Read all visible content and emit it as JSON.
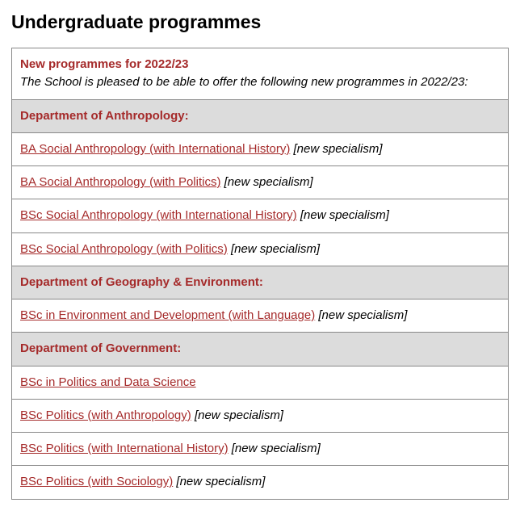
{
  "page_title": "Undergraduate programmes",
  "intro": {
    "heading": "New programmes for 2022/23",
    "text": "The School is pleased to be able to offer the following new programmes in 2022/23:"
  },
  "colors": {
    "accent": "#a52a2a",
    "dept_bg": "#dcdcdc",
    "border": "#888888",
    "text": "#000000",
    "background": "#ffffff"
  },
  "departments": [
    {
      "name": "Department of Anthropology:",
      "programmes": [
        {
          "title": "BA Social Anthropology (with International History)",
          "note": "[new specialism]"
        },
        {
          "title": "BA Social Anthropology (with Politics)",
          "note": "[new specialism]"
        },
        {
          "title": "BSc Social Anthropology (with International History)",
          "note": "[new specialism]"
        },
        {
          "title": "BSc Social Anthropology (with Politics)",
          "note": "[new specialism]"
        }
      ]
    },
    {
      "name": "Department of Geography & Environment:",
      "programmes": [
        {
          "title": "BSc in Environment and Development (with Language)",
          "note": "[new specialism]"
        }
      ]
    },
    {
      "name": "Department of Government:",
      "programmes": [
        {
          "title": "BSc in Politics and Data Science",
          "note": ""
        },
        {
          "title": "BSc Politics (with Anthropology)",
          "note": "[new specialism]"
        },
        {
          "title": "BSc Politics (with International History)",
          "note": "[new specialism]"
        },
        {
          "title": "BSc Politics (with Sociology)",
          "note": "[new specialism]"
        }
      ]
    }
  ]
}
